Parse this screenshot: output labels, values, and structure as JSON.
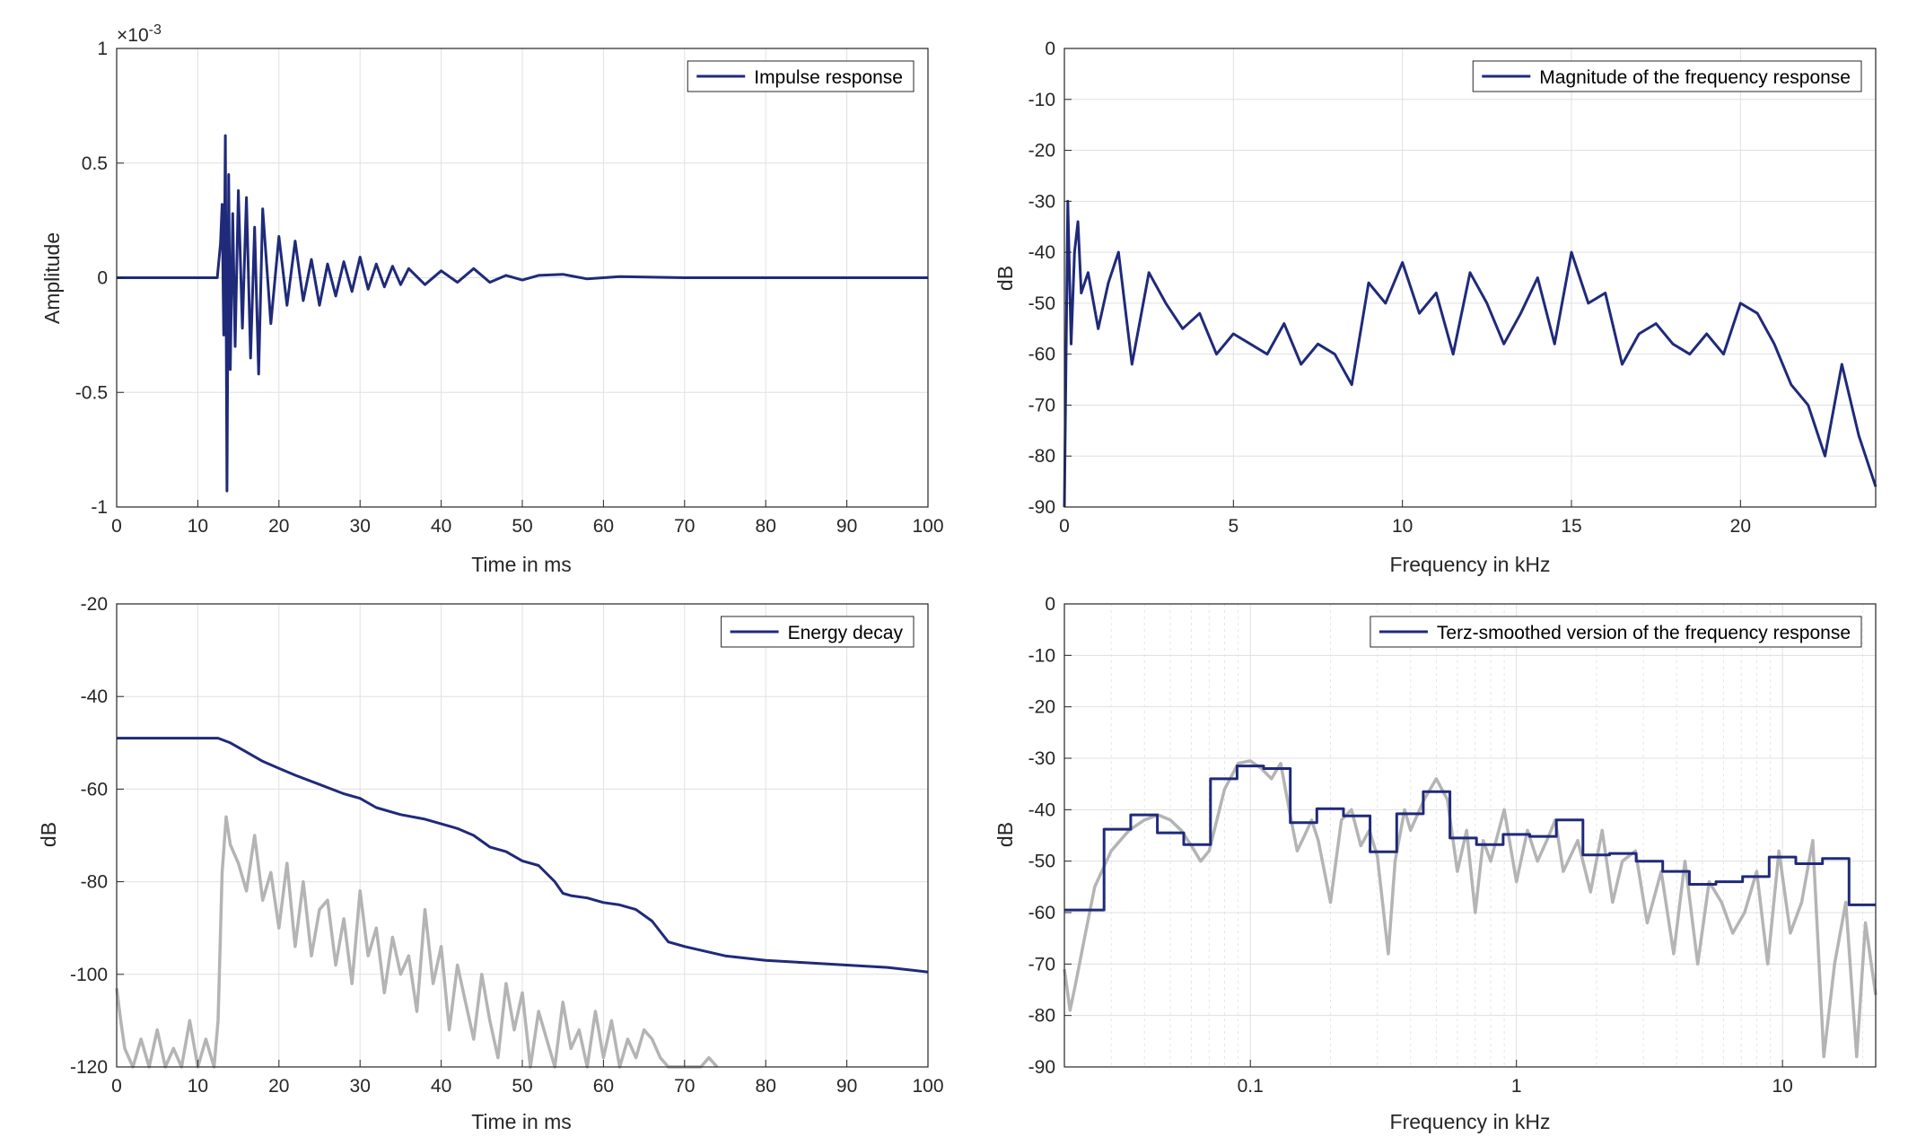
{
  "colors": {
    "main": "#1f2a7a",
    "secondary": "#b4b4b4",
    "grid": "#e0e0e0",
    "axis": "#262626"
  },
  "chart_data": [
    {
      "id": "impulse",
      "type": "line",
      "title": "",
      "xlabel": "Time in ms",
      "ylabel": "Amplitude",
      "exponent_label": "×10",
      "exponent_power": "-3",
      "xlim": [
        0,
        100
      ],
      "ylim": [
        -1,
        1
      ],
      "xticks": [
        0,
        10,
        20,
        30,
        40,
        50,
        60,
        70,
        80,
        90,
        100
      ],
      "xtick_labels": [
        "0",
        "10",
        "20",
        "30",
        "40",
        "50",
        "60",
        "70",
        "80",
        "90",
        "100"
      ],
      "yticks": [
        -1,
        -0.5,
        0,
        0.5,
        1
      ],
      "ytick_labels": [
        "-1",
        "-0.5",
        "0",
        "0.5",
        "1"
      ],
      "grid": true,
      "legend_position": "top-right",
      "series": [
        {
          "name": "Impulse response",
          "color": "#1f2a7a",
          "x": [
            0,
            12.4,
            12.8,
            13.0,
            13.2,
            13.4,
            13.6,
            13.8,
            14.0,
            14.3,
            14.6,
            15.0,
            15.5,
            16.0,
            16.5,
            17.0,
            17.5,
            18.0,
            19.0,
            20.0,
            21.0,
            22.0,
            23.0,
            24.0,
            25.0,
            26.0,
            27.0,
            28.0,
            29.0,
            30.0,
            31.0,
            32.0,
            33.0,
            34.0,
            35.0,
            36.0,
            38.0,
            40.0,
            42.0,
            44.0,
            46.0,
            48.0,
            50.0,
            52.0,
            55.0,
            58.0,
            62.0,
            70.0,
            80.0,
            90.0,
            100.0
          ],
          "y": [
            0,
            0.0,
            0.15,
            0.32,
            -0.25,
            0.62,
            -0.93,
            0.45,
            -0.4,
            0.28,
            -0.3,
            0.38,
            -0.22,
            0.35,
            -0.35,
            0.22,
            -0.42,
            0.3,
            -0.2,
            0.18,
            -0.12,
            0.16,
            -0.1,
            0.08,
            -0.12,
            0.06,
            -0.08,
            0.07,
            -0.06,
            0.09,
            -0.05,
            0.06,
            -0.04,
            0.05,
            -0.03,
            0.04,
            -0.03,
            0.03,
            -0.02,
            0.04,
            -0.02,
            0.01,
            -0.01,
            0.01,
            0.015,
            -0.005,
            0.005,
            0.0,
            0.0,
            0.0,
            0.0
          ]
        }
      ]
    },
    {
      "id": "magnitude",
      "type": "line",
      "title": "",
      "xlabel": "Frequency in kHz",
      "ylabel": "dB",
      "xlim": [
        0,
        24
      ],
      "ylim": [
        -90,
        0
      ],
      "xticks": [
        0,
        5,
        10,
        15,
        20
      ],
      "xtick_labels": [
        "0",
        "5",
        "10",
        "15",
        "20"
      ],
      "yticks": [
        -90,
        -80,
        -70,
        -60,
        -50,
        -40,
        -30,
        -20,
        -10,
        0
      ],
      "ytick_labels": [
        "-90",
        "-80",
        "-70",
        "-60",
        "-50",
        "-40",
        "-30",
        "-20",
        "-10",
        "0"
      ],
      "grid": true,
      "legend_position": "top-right",
      "series": [
        {
          "name": "Magnitude of the frequency response",
          "color": "#1f2a7a",
          "x": [
            0,
            0.1,
            0.2,
            0.3,
            0.4,
            0.5,
            0.7,
            1.0,
            1.3,
            1.6,
            2.0,
            2.5,
            3.0,
            3.5,
            4.0,
            4.5,
            5.0,
            5.5,
            6.0,
            6.5,
            7.0,
            7.5,
            8.0,
            8.5,
            9.0,
            9.5,
            10.0,
            10.5,
            11.0,
            11.5,
            12.0,
            12.5,
            13.0,
            13.5,
            14.0,
            14.5,
            15.0,
            15.5,
            16.0,
            16.5,
            17.0,
            17.5,
            18.0,
            18.5,
            19.0,
            19.5,
            20.0,
            20.5,
            21.0,
            21.5,
            22.0,
            22.5,
            23.0,
            23.5,
            24.0
          ],
          "y": [
            -90,
            -30,
            -58,
            -40,
            -34,
            -48,
            -44,
            -55,
            -46,
            -40,
            -62,
            -44,
            -50,
            -55,
            -52,
            -60,
            -56,
            -58,
            -60,
            -54,
            -62,
            -58,
            -60,
            -66,
            -46,
            -50,
            -42,
            -52,
            -48,
            -60,
            -44,
            -50,
            -58,
            -52,
            -45,
            -58,
            -40,
            -50,
            -48,
            -62,
            -56,
            -54,
            -58,
            -60,
            -56,
            -60,
            -50,
            -52,
            -58,
            -66,
            -70,
            -80,
            -62,
            -76,
            -86
          ]
        }
      ]
    },
    {
      "id": "decay",
      "type": "line",
      "title": "",
      "xlabel": "Time in ms",
      "ylabel": "dB",
      "xlim": [
        0,
        100
      ],
      "ylim": [
        -120,
        -20
      ],
      "xticks": [
        0,
        10,
        20,
        30,
        40,
        50,
        60,
        70,
        80,
        90,
        100
      ],
      "xtick_labels": [
        "0",
        "10",
        "20",
        "30",
        "40",
        "50",
        "60",
        "70",
        "80",
        "90",
        "100"
      ],
      "yticks": [
        -120,
        -100,
        -80,
        -60,
        -40,
        -20
      ],
      "ytick_labels": [
        "-120",
        "-100",
        "-80",
        "-60",
        "-40",
        "-20"
      ],
      "grid": true,
      "legend_position": "top-right",
      "series": [
        {
          "name": "Energy decay",
          "color": "#1f2a7a",
          "x": [
            0,
            12.5,
            14,
            16,
            18,
            20,
            22,
            25,
            28,
            30,
            32,
            35,
            38,
            40,
            42,
            44,
            46,
            48,
            50,
            52,
            54,
            55,
            56,
            58,
            60,
            62,
            64,
            66,
            68,
            70,
            75,
            80,
            85,
            90,
            95,
            100
          ],
          "y": [
            -49,
            -49,
            -50,
            -52,
            -54,
            -55.5,
            -57,
            -59,
            -61,
            -62,
            -64,
            -65.5,
            -66.5,
            -67.5,
            -68.5,
            -70,
            -72.5,
            -73.5,
            -75.5,
            -76.5,
            -80,
            -82.5,
            -83,
            -83.5,
            -84.5,
            -85,
            -86,
            -88.5,
            -93,
            -94,
            -96,
            -97,
            -97.5,
            -98,
            -98.5,
            -99.5
          ]
        },
        {
          "color": "#b4b4b4",
          "x": [
            0,
            0.5,
            1,
            2,
            3,
            4,
            5,
            6,
            7,
            8,
            9,
            10,
            11,
            12,
            12.5,
            13,
            13.5,
            14,
            15,
            16,
            17,
            18,
            19,
            20,
            21,
            22,
            23,
            24,
            25,
            26,
            27,
            28,
            29,
            30,
            31,
            32,
            33,
            34,
            35,
            36,
            37,
            38,
            39,
            40,
            41,
            42,
            43,
            44,
            45,
            46,
            47,
            48,
            49,
            50,
            51,
            52,
            53,
            54,
            55,
            56,
            57,
            58,
            59,
            60,
            61,
            62,
            63,
            64,
            65,
            66,
            67,
            68,
            70,
            72,
            73,
            74
          ],
          "y": [
            -103,
            -110,
            -116,
            -120,
            -114,
            -120,
            -112,
            -120,
            -116,
            -120,
            -110,
            -120,
            -114,
            -120,
            -110,
            -78,
            -66,
            -72,
            -76,
            -82,
            -70,
            -84,
            -78,
            -90,
            -76,
            -94,
            -80,
            -96,
            -86,
            -84,
            -98,
            -88,
            -102,
            -82,
            -96,
            -90,
            -104,
            -92,
            -100,
            -96,
            -108,
            -86,
            -102,
            -94,
            -112,
            -98,
            -106,
            -114,
            -100,
            -110,
            -118,
            -102,
            -112,
            -104,
            -120,
            -108,
            -114,
            -120,
            -106,
            -116,
            -112,
            -120,
            -108,
            -118,
            -110,
            -120,
            -114,
            -118,
            -112,
            -114,
            -118,
            -120,
            -120,
            -120,
            -118,
            -120
          ]
        }
      ]
    },
    {
      "id": "terz",
      "type": "line",
      "title": "",
      "xlabel": "Frequency in kHz",
      "ylabel": "dB",
      "xscale": "log",
      "xlim": [
        0.02,
        22.4
      ],
      "ylim": [
        -90,
        0
      ],
      "xticks": [
        0.1,
        1,
        10
      ],
      "xtick_labels": [
        "0.1",
        "1",
        "10"
      ],
      "yticks": [
        -90,
        -80,
        -70,
        -60,
        -50,
        -40,
        -30,
        -20,
        -10,
        0
      ],
      "ytick_labels": [
        "-90",
        "-80",
        "-70",
        "-60",
        "-50",
        "-40",
        "-30",
        "-20",
        "-10",
        "0"
      ],
      "grid": true,
      "legend_position": "top-right",
      "series": [
        {
          "name": "Terz-smoothed version of the frequency response",
          "color": "#1f2a7a",
          "step": true,
          "edges": [
            0.02,
            0.0282,
            0.0355,
            0.0447,
            0.0562,
            0.0708,
            0.0891,
            0.1122,
            0.1413,
            0.1778,
            0.2239,
            0.2818,
            0.3548,
            0.4467,
            0.5623,
            0.7079,
            0.8913,
            1.122,
            1.413,
            1.778,
            2.239,
            2.818,
            3.548,
            4.467,
            5.623,
            7.079,
            8.913,
            11.22,
            14.13,
            17.78,
            22.4
          ],
          "values": [
            -59.5,
            -43.8,
            -41.0,
            -44.5,
            -46.8,
            -34.0,
            -31.5,
            -32.0,
            -42.5,
            -39.8,
            -41.2,
            -48.2,
            -40.8,
            -36.5,
            -45.5,
            -46.8,
            -44.8,
            -45.2,
            -42.0,
            -48.8,
            -48.5,
            -50.0,
            -52.0,
            -54.5,
            -54.0,
            -53.0,
            -49.2,
            -50.5,
            -49.5,
            -58.5
          ]
        },
        {
          "color": "#b4b4b4",
          "x": [
            0.02,
            0.021,
            0.022,
            0.024,
            0.026,
            0.03,
            0.035,
            0.04,
            0.045,
            0.05,
            0.055,
            0.06,
            0.065,
            0.07,
            0.08,
            0.09,
            0.1,
            0.11,
            0.12,
            0.13,
            0.14,
            0.15,
            0.16,
            0.17,
            0.18,
            0.2,
            0.22,
            0.24,
            0.26,
            0.28,
            0.3,
            0.33,
            0.35,
            0.38,
            0.4,
            0.45,
            0.5,
            0.55,
            0.6,
            0.65,
            0.7,
            0.75,
            0.8,
            0.9,
            1.0,
            1.1,
            1.2,
            1.3,
            1.4,
            1.5,
            1.7,
            1.9,
            2.1,
            2.3,
            2.5,
            2.8,
            3.1,
            3.5,
            3.9,
            4.3,
            4.8,
            5.3,
            5.9,
            6.5,
            7.2,
            8.0,
            8.8,
            9.7,
            10.7,
            11.8,
            13.0,
            14.3,
            15.7,
            17.3,
            19.0,
            20.5,
            22.4
          ],
          "y": [
            -71,
            -79,
            -74,
            -64,
            -55,
            -48,
            -44,
            -42,
            -41,
            -42,
            -44,
            -47,
            -50,
            -48,
            -36,
            -31,
            -30.5,
            -32,
            -34,
            -31,
            -40,
            -48,
            -45,
            -42,
            -46,
            -58,
            -42,
            -40,
            -47,
            -44,
            -49,
            -68,
            -50,
            -40,
            -44,
            -38,
            -34,
            -38,
            -52,
            -44,
            -60,
            -46,
            -50,
            -40,
            -54,
            -44,
            -50,
            -46,
            -42,
            -52,
            -46,
            -56,
            -44,
            -58,
            -50,
            -48,
            -62,
            -52,
            -68,
            -50,
            -70,
            -54,
            -58,
            -64,
            -60,
            -52,
            -70,
            -48,
            -64,
            -58,
            -46,
            -88,
            -70,
            -58,
            -88,
            -62,
            -76
          ]
        }
      ]
    }
  ]
}
